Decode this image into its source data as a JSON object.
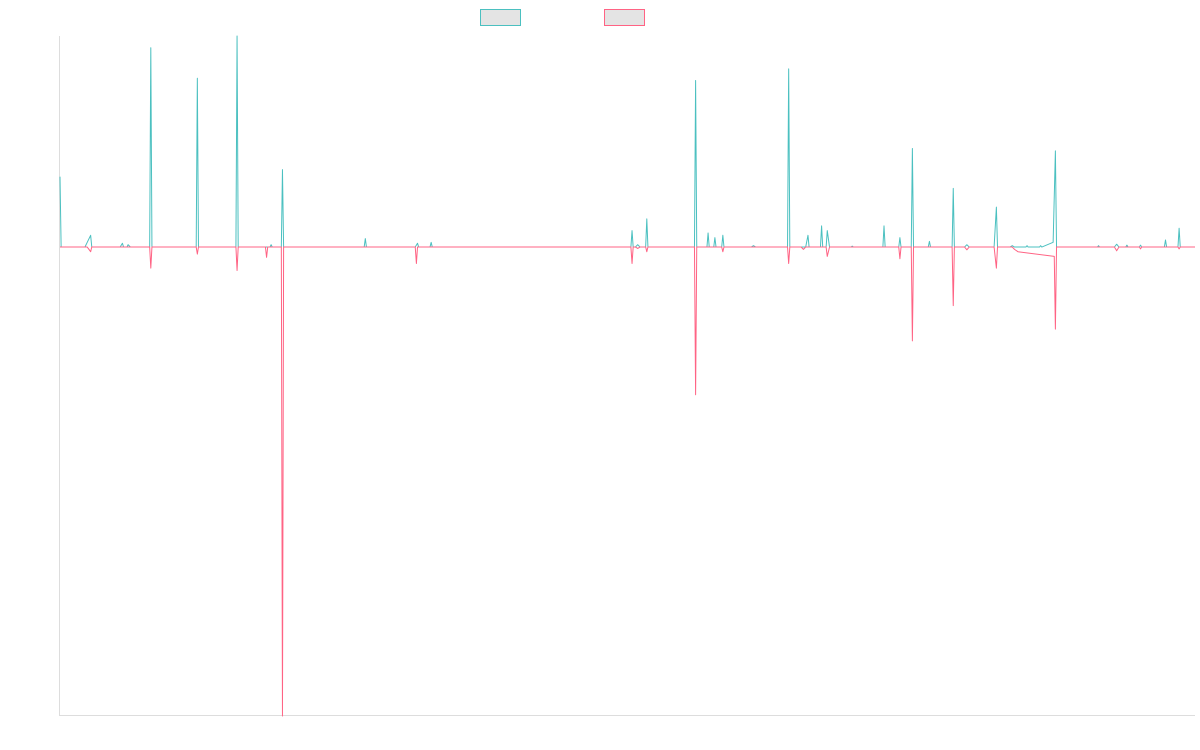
{
  "colors": {
    "series_1": "#4bc0c0",
    "series_2": "#ff6384",
    "legend_fill": "#e4e4e4",
    "axis": "#dddddd",
    "background": "#ffffff"
  },
  "chart_data": {
    "type": "line",
    "title": "",
    "xlabel": "",
    "ylabel": "",
    "legend_position": "top-center",
    "grid": false,
    "x_range": [
      0,
      1000
    ],
    "ylim": [
      -100,
      45
    ],
    "series": [
      {
        "name": "",
        "color": "#4bc0c0",
        "points": [
          [
            0,
            15
          ],
          [
            1,
            0
          ],
          [
            22,
            0
          ],
          [
            24,
            1
          ],
          [
            27,
            2.5
          ],
          [
            28,
            0
          ],
          [
            53,
            0
          ],
          [
            55,
            0.8
          ],
          [
            56,
            0
          ],
          [
            59,
            0
          ],
          [
            60,
            0.5
          ],
          [
            62,
            0
          ],
          [
            79,
            0
          ],
          [
            80,
            42.5
          ],
          [
            81,
            0
          ],
          [
            120,
            0
          ],
          [
            121,
            36
          ],
          [
            122,
            0
          ],
          [
            155,
            0
          ],
          [
            156,
            45
          ],
          [
            157,
            0
          ],
          [
            185,
            0
          ],
          [
            186,
            0.5
          ],
          [
            187,
            0
          ],
          [
            195,
            0
          ],
          [
            196,
            16.5
          ],
          [
            197,
            0
          ],
          [
            268,
            0
          ],
          [
            269,
            1.8
          ],
          [
            270,
            0
          ],
          [
            313,
            0
          ],
          [
            315,
            0.8
          ],
          [
            316,
            0
          ],
          [
            326,
            0
          ],
          [
            327,
            1
          ],
          [
            328,
            0
          ],
          [
            503,
            0
          ],
          [
            504,
            3.5
          ],
          [
            505,
            0
          ],
          [
            507,
            0
          ],
          [
            509,
            0.5
          ],
          [
            511,
            0
          ],
          [
            516,
            0
          ],
          [
            517,
            6
          ],
          [
            518,
            0
          ],
          [
            559,
            0
          ],
          [
            560,
            35.5
          ],
          [
            561,
            0
          ],
          [
            570,
            0
          ],
          [
            571,
            3
          ],
          [
            572,
            0
          ],
          [
            576,
            0
          ],
          [
            577,
            2
          ],
          [
            578,
            0
          ],
          [
            583,
            0
          ],
          [
            584,
            2.5
          ],
          [
            585,
            0
          ],
          [
            609,
            0
          ],
          [
            611,
            0.3
          ],
          [
            613,
            0
          ],
          [
            641,
            0
          ],
          [
            642,
            38
          ],
          [
            643,
            0
          ],
          [
            657,
            0
          ],
          [
            659,
            2.5
          ],
          [
            660,
            0
          ],
          [
            670,
            0
          ],
          [
            671,
            4.5
          ],
          [
            672,
            0
          ],
          [
            675,
            0
          ],
          [
            676,
            3.5
          ],
          [
            678,
            0
          ],
          [
            697,
            0
          ],
          [
            698,
            0.2
          ],
          [
            699,
            0
          ],
          [
            725,
            0
          ],
          [
            726,
            4.5
          ],
          [
            727,
            0
          ],
          [
            739,
            0
          ],
          [
            740,
            2
          ],
          [
            741,
            0
          ],
          [
            750,
            0
          ],
          [
            751,
            21
          ],
          [
            752,
            0
          ],
          [
            765,
            0
          ],
          [
            766,
            1.2
          ],
          [
            767,
            0
          ],
          [
            786,
            0
          ],
          [
            787,
            12.5
          ],
          [
            788,
            0
          ],
          [
            797,
            0
          ],
          [
            799,
            0.5
          ],
          [
            801,
            0
          ],
          [
            823,
            0
          ],
          [
            825,
            8.5
          ],
          [
            826,
            0
          ],
          [
            837,
            0
          ],
          [
            839,
            0.3
          ],
          [
            841,
            0
          ],
          [
            851,
            0
          ],
          [
            852,
            0.3
          ],
          [
            853,
            0
          ],
          [
            863,
            0
          ],
          [
            864,
            0.3
          ],
          [
            865,
            0
          ],
          [
            875,
            1
          ],
          [
            877,
            20.5
          ],
          [
            878,
            0
          ],
          [
            914,
            0
          ],
          [
            915,
            0.3
          ],
          [
            916,
            0
          ],
          [
            929,
            0
          ],
          [
            931,
            0.6
          ],
          [
            933,
            0
          ],
          [
            939,
            0
          ],
          [
            940,
            0.4
          ],
          [
            941,
            0
          ],
          [
            951,
            0
          ],
          [
            952,
            0.4
          ],
          [
            953,
            0
          ],
          [
            973,
            0
          ],
          [
            974,
            1.5
          ],
          [
            975,
            0
          ],
          [
            985,
            0
          ],
          [
            986,
            4
          ],
          [
            987,
            0
          ],
          [
            1000,
            0
          ]
        ]
      },
      {
        "name": "",
        "color": "#ff6384",
        "points": [
          [
            0,
            0
          ],
          [
            24,
            0
          ],
          [
            27,
            -1
          ],
          [
            28,
            0
          ],
          [
            79,
            0
          ],
          [
            80,
            -4.5
          ],
          [
            81,
            0
          ],
          [
            120,
            0
          ],
          [
            121,
            -1.5
          ],
          [
            122,
            0
          ],
          [
            155,
            0
          ],
          [
            156,
            -5
          ],
          [
            157,
            0
          ],
          [
            181,
            0
          ],
          [
            182,
            -2.2
          ],
          [
            183,
            0
          ],
          [
            195,
            0
          ],
          [
            196,
            -100
          ],
          [
            197,
            0
          ],
          [
            313,
            0
          ],
          [
            314,
            -3.5
          ],
          [
            315,
            0
          ],
          [
            503,
            0
          ],
          [
            504,
            -3.5
          ],
          [
            505,
            0
          ],
          [
            507,
            0
          ],
          [
            509,
            -0.3
          ],
          [
            511,
            0
          ],
          [
            516,
            0
          ],
          [
            517,
            -1
          ],
          [
            518,
            0
          ],
          [
            559,
            0
          ],
          [
            560,
            -31.5
          ],
          [
            561,
            0
          ],
          [
            583,
            0
          ],
          [
            584,
            -1
          ],
          [
            585,
            0
          ],
          [
            641,
            0
          ],
          [
            642,
            -3.5
          ],
          [
            643,
            0
          ],
          [
            653,
            0
          ],
          [
            655,
            -0.5
          ],
          [
            657,
            0
          ],
          [
            675,
            0
          ],
          [
            676,
            -2
          ],
          [
            678,
            0
          ],
          [
            739,
            0
          ],
          [
            740,
            -2.5
          ],
          [
            741,
            0
          ],
          [
            750,
            0
          ],
          [
            751,
            -20
          ],
          [
            752,
            0
          ],
          [
            786,
            0
          ],
          [
            787,
            -12.5
          ],
          [
            788,
            0
          ],
          [
            797,
            0
          ],
          [
            799,
            -0.6
          ],
          [
            801,
            0
          ],
          [
            823,
            0
          ],
          [
            825,
            -4.5
          ],
          [
            826,
            0
          ],
          [
            839,
            0
          ],
          [
            841,
            -0.5
          ],
          [
            844,
            -1
          ],
          [
            876,
            -2
          ],
          [
            877,
            -17.5
          ],
          [
            878,
            0
          ],
          [
            929,
            0
          ],
          [
            931,
            -0.8
          ],
          [
            933,
            0
          ],
          [
            951,
            0
          ],
          [
            952,
            -0.4
          ],
          [
            953,
            0
          ],
          [
            985,
            0
          ],
          [
            986,
            -0.4
          ],
          [
            987,
            0
          ],
          [
            1000,
            0
          ]
        ]
      }
    ]
  }
}
